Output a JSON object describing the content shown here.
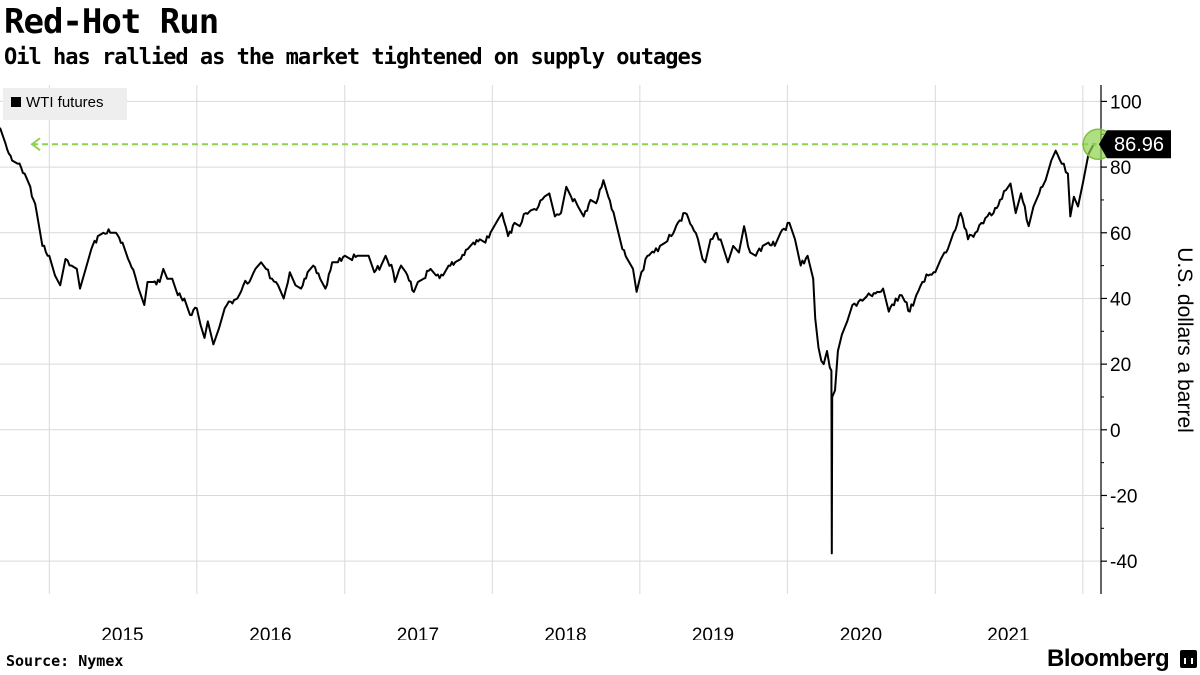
{
  "header": {
    "title": "Red-Hot Run",
    "subtitle": "Oil has rallied as the market tightened on supply outages"
  },
  "footer": {
    "source": "Source: Nymex",
    "brand": "Bloomberg"
  },
  "colors": {
    "line": "#000000",
    "grid": "#d9d9d9",
    "highlight": "#8fd14f",
    "legend_bg": "#eeeeee",
    "callout_bg": "#000000"
  },
  "chart_data": {
    "type": "line",
    "ylabel": "U.S. dollars a barrel",
    "ylim": [
      -50,
      105
    ],
    "yticks": [
      "100",
      "80",
      "60",
      "40",
      "20",
      "0",
      "-20",
      "-40"
    ],
    "xlim": [
      "2014-09-01",
      "2022-02-15"
    ],
    "xticks": [
      "2015",
      "2016",
      "2017",
      "2018",
      "2019",
      "2020",
      "2021"
    ],
    "legend": {
      "entries": [
        "WTI futures"
      ],
      "position": "top-left"
    },
    "y_axis_position": "right",
    "grid": true,
    "callout": {
      "label": "86.96",
      "value": 86.96
    },
    "series": [
      {
        "name": "WTI futures",
        "points": [
          [
            "2014-09-01",
            92
          ],
          [
            "2014-09-15",
            87
          ],
          [
            "2014-10-01",
            82
          ],
          [
            "2014-10-15",
            81
          ],
          [
            "2014-11-01",
            78
          ],
          [
            "2014-11-15",
            74
          ],
          [
            "2014-12-01",
            66
          ],
          [
            "2014-12-15",
            56
          ],
          [
            "2015-01-01",
            53
          ],
          [
            "2015-01-15",
            47
          ],
          [
            "2015-01-28",
            44
          ],
          [
            "2015-02-10",
            52
          ],
          [
            "2015-02-25",
            50
          ],
          [
            "2015-03-10",
            49
          ],
          [
            "2015-03-18",
            43
          ],
          [
            "2015-04-01",
            49
          ],
          [
            "2015-04-15",
            55
          ],
          [
            "2015-05-01",
            59
          ],
          [
            "2015-05-15",
            60
          ],
          [
            "2015-06-01",
            60
          ],
          [
            "2015-06-15",
            60
          ],
          [
            "2015-07-01",
            57
          ],
          [
            "2015-07-15",
            52
          ],
          [
            "2015-08-01",
            47
          ],
          [
            "2015-08-10",
            43
          ],
          [
            "2015-08-24",
            38
          ],
          [
            "2015-09-01",
            45
          ],
          [
            "2015-09-15",
            45
          ],
          [
            "2015-10-01",
            45
          ],
          [
            "2015-10-10",
            49
          ],
          [
            "2015-10-20",
            46
          ],
          [
            "2015-11-01",
            46
          ],
          [
            "2015-11-15",
            41
          ],
          [
            "2015-12-01",
            40
          ],
          [
            "2015-12-15",
            35
          ],
          [
            "2016-01-01",
            37
          ],
          [
            "2016-01-10",
            32
          ],
          [
            "2016-01-20",
            28
          ],
          [
            "2016-01-28",
            33
          ],
          [
            "2016-02-11",
            26
          ],
          [
            "2016-02-25",
            31
          ],
          [
            "2016-03-10",
            37
          ],
          [
            "2016-03-25",
            39
          ],
          [
            "2016-04-10",
            40
          ],
          [
            "2016-04-25",
            44
          ],
          [
            "2016-05-10",
            45
          ],
          [
            "2016-05-25",
            49
          ],
          [
            "2016-06-08",
            51
          ],
          [
            "2016-06-20",
            49
          ],
          [
            "2016-07-05",
            46
          ],
          [
            "2016-07-20",
            44
          ],
          [
            "2016-08-03",
            40
          ],
          [
            "2016-08-18",
            48
          ],
          [
            "2016-09-01",
            44
          ],
          [
            "2016-09-15",
            43
          ],
          [
            "2016-10-01",
            48
          ],
          [
            "2016-10-15",
            50
          ],
          [
            "2016-11-01",
            46
          ],
          [
            "2016-11-14",
            43
          ],
          [
            "2016-12-01",
            51
          ],
          [
            "2016-12-15",
            51
          ],
          [
            "2017-01-01",
            53
          ],
          [
            "2017-01-15",
            52
          ],
          [
            "2017-02-01",
            53
          ],
          [
            "2017-02-15",
            53
          ],
          [
            "2017-03-01",
            53
          ],
          [
            "2017-03-15",
            48
          ],
          [
            "2017-04-01",
            50
          ],
          [
            "2017-04-12",
            53
          ],
          [
            "2017-05-01",
            48
          ],
          [
            "2017-05-05",
            45
          ],
          [
            "2017-05-20",
            50
          ],
          [
            "2017-06-01",
            48
          ],
          [
            "2017-06-21",
            42
          ],
          [
            "2017-07-01",
            45
          ],
          [
            "2017-07-15",
            46
          ],
          [
            "2017-08-01",
            49
          ],
          [
            "2017-08-15",
            47
          ],
          [
            "2017-09-01",
            47
          ],
          [
            "2017-09-15",
            50
          ],
          [
            "2017-10-01",
            51
          ],
          [
            "2017-10-15",
            52
          ],
          [
            "2017-11-01",
            55
          ],
          [
            "2017-11-15",
            57
          ],
          [
            "2017-12-01",
            58
          ],
          [
            "2017-12-15",
            57
          ],
          [
            "2018-01-01",
            61
          ],
          [
            "2018-01-15",
            64
          ],
          [
            "2018-01-25",
            66
          ],
          [
            "2018-02-09",
            59
          ],
          [
            "2018-02-25",
            63
          ],
          [
            "2018-03-10",
            62
          ],
          [
            "2018-03-25",
            66
          ],
          [
            "2018-04-10",
            67
          ],
          [
            "2018-04-25",
            68
          ],
          [
            "2018-05-10",
            71
          ],
          [
            "2018-05-22",
            72
          ],
          [
            "2018-06-05",
            65
          ],
          [
            "2018-06-20",
            66
          ],
          [
            "2018-07-03",
            74
          ],
          [
            "2018-07-15",
            71
          ],
          [
            "2018-08-01",
            68
          ],
          [
            "2018-08-15",
            65
          ],
          [
            "2018-09-01",
            70
          ],
          [
            "2018-09-15",
            69
          ],
          [
            "2018-10-03",
            76
          ],
          [
            "2018-10-15",
            71
          ],
          [
            "2018-11-01",
            64
          ],
          [
            "2018-11-15",
            57
          ],
          [
            "2018-12-01",
            52
          ],
          [
            "2018-12-15",
            49
          ],
          [
            "2018-12-24",
            42
          ],
          [
            "2019-01-05",
            48
          ],
          [
            "2019-01-20",
            53
          ],
          [
            "2019-02-05",
            54
          ],
          [
            "2019-02-20",
            56
          ],
          [
            "2019-03-05",
            57
          ],
          [
            "2019-03-20",
            59
          ],
          [
            "2019-04-05",
            63
          ],
          [
            "2019-04-23",
            66
          ],
          [
            "2019-05-10",
            62
          ],
          [
            "2019-05-25",
            58
          ],
          [
            "2019-06-05",
            52
          ],
          [
            "2019-06-12",
            51
          ],
          [
            "2019-06-25",
            58
          ],
          [
            "2019-07-10",
            60
          ],
          [
            "2019-07-25",
            56
          ],
          [
            "2019-08-07",
            51
          ],
          [
            "2019-08-20",
            56
          ],
          [
            "2019-09-03",
            54
          ],
          [
            "2019-09-16",
            62
          ],
          [
            "2019-10-01",
            54
          ],
          [
            "2019-10-15",
            53
          ],
          [
            "2019-11-01",
            56
          ],
          [
            "2019-11-15",
            57
          ],
          [
            "2019-12-01",
            56
          ],
          [
            "2019-12-15",
            60
          ],
          [
            "2020-01-06",
            63
          ],
          [
            "2020-01-20",
            58
          ],
          [
            "2020-02-03",
            50
          ],
          [
            "2020-02-20",
            53
          ],
          [
            "2020-03-05",
            46
          ],
          [
            "2020-03-10",
            34
          ],
          [
            "2020-03-18",
            25
          ],
          [
            "2020-03-25",
            21
          ],
          [
            "2020-03-31",
            20
          ],
          [
            "2020-04-08",
            24
          ],
          [
            "2020-04-15",
            19
          ],
          [
            "2020-04-19",
            18
          ],
          [
            "2020-04-20",
            -37.63
          ],
          [
            "2020-04-21",
            10
          ],
          [
            "2020-04-28",
            12
          ],
          [
            "2020-05-05",
            24
          ],
          [
            "2020-05-15",
            29
          ],
          [
            "2020-05-28",
            33
          ],
          [
            "2020-06-10",
            38
          ],
          [
            "2020-06-25",
            39
          ],
          [
            "2020-07-10",
            40
          ],
          [
            "2020-07-25",
            41
          ],
          [
            "2020-08-10",
            42
          ],
          [
            "2020-08-25",
            43
          ],
          [
            "2020-09-08",
            36
          ],
          [
            "2020-09-25",
            40
          ],
          [
            "2020-10-10",
            41
          ],
          [
            "2020-10-30",
            36
          ],
          [
            "2020-11-15",
            41
          ],
          [
            "2020-11-30",
            45
          ],
          [
            "2020-12-15",
            47
          ],
          [
            "2021-01-01",
            48
          ],
          [
            "2021-01-15",
            52
          ],
          [
            "2021-02-01",
            55
          ],
          [
            "2021-02-15",
            60
          ],
          [
            "2021-03-05",
            66
          ],
          [
            "2021-03-23",
            58
          ],
          [
            "2021-04-10",
            60
          ],
          [
            "2021-04-25",
            63
          ],
          [
            "2021-05-10",
            65
          ],
          [
            "2021-05-25",
            66
          ],
          [
            "2021-06-10",
            70
          ],
          [
            "2021-06-25",
            73
          ],
          [
            "2021-07-06",
            75
          ],
          [
            "2021-07-19",
            66
          ],
          [
            "2021-08-01",
            72
          ],
          [
            "2021-08-20",
            62
          ],
          [
            "2021-09-01",
            68
          ],
          [
            "2021-09-15",
            72
          ],
          [
            "2021-10-01",
            76
          ],
          [
            "2021-10-15",
            82
          ],
          [
            "2021-10-26",
            85
          ],
          [
            "2021-11-10",
            81
          ],
          [
            "2021-11-25",
            78
          ],
          [
            "2021-12-01",
            65
          ],
          [
            "2021-12-10",
            71
          ],
          [
            "2021-12-20",
            68
          ],
          [
            "2022-01-01",
            75
          ],
          [
            "2022-01-15",
            84
          ],
          [
            "2022-01-28",
            87
          ],
          [
            "2022-02-03",
            86.96
          ]
        ]
      }
    ]
  }
}
